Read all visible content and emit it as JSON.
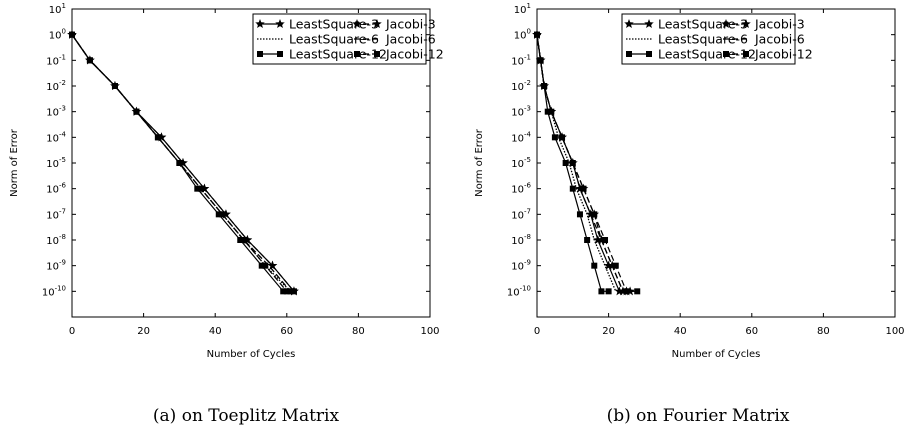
{
  "chart_data": [
    {
      "type": "line",
      "caption": "(a) on Toeplitz Matrix",
      "xlabel": "Number of Cycles",
      "ylabel": "Norm of Error",
      "xlim": [
        0,
        100
      ],
      "ylim_exp": [
        -11,
        1
      ],
      "yscale": "log",
      "xticks": [
        0,
        20,
        40,
        60,
        80,
        100
      ],
      "yticks_exp": [
        -10,
        -9,
        -8,
        -7,
        -6,
        -5,
        -4,
        -3,
        -2,
        -1,
        0,
        1
      ],
      "legend_position": "top-right",
      "series": [
        {
          "name": "LeastSquare-3",
          "marker": "star",
          "dash": "solid",
          "x": [
            0,
            5,
            12,
            18,
            25,
            31,
            37,
            43,
            49,
            56,
            62
          ],
          "y_exp": [
            0,
            -1,
            -2,
            -3,
            -4,
            -5,
            -6,
            -7,
            -8,
            -9,
            -10
          ]
        },
        {
          "name": "LeastSquare-6",
          "marker": "none",
          "dash": "dotted",
          "x": [
            0,
            5,
            12,
            18,
            24,
            30,
            36,
            42,
            48,
            54,
            61
          ],
          "y_exp": [
            0,
            -1,
            -2,
            -3,
            -4,
            -5,
            -6,
            -7,
            -8,
            -9,
            -10
          ]
        },
        {
          "name": "LeastSquare-12",
          "marker": "square",
          "dash": "solid",
          "x": [
            0,
            5,
            12,
            18,
            24,
            30,
            35,
            41,
            47,
            53,
            59,
            61
          ],
          "y_exp": [
            0,
            -1,
            -2,
            -3,
            -4,
            -5,
            -6,
            -7,
            -8,
            -9,
            -10,
            -10
          ]
        },
        {
          "name": "Jacobi-3",
          "marker": "star",
          "dash": "dashed",
          "x": [
            0,
            5,
            12,
            18,
            25,
            31,
            37,
            43,
            49,
            56,
            62
          ],
          "y_exp": [
            0,
            -1,
            -2,
            -3,
            -4,
            -5,
            -6,
            -7,
            -8,
            -9,
            -10
          ]
        },
        {
          "name": "Jacobi-6",
          "marker": "none",
          "dash": "dashed",
          "x": [
            0,
            5,
            12,
            18,
            24,
            30,
            36,
            42,
            48,
            55,
            61
          ],
          "y_exp": [
            0,
            -1,
            -2,
            -3,
            -4,
            -5,
            -6,
            -7,
            -8,
            -9,
            -10
          ]
        },
        {
          "name": "Jacobi-12",
          "marker": "square",
          "dash": "dashed",
          "x": [
            0,
            5,
            12,
            18,
            24,
            30,
            36,
            42,
            48,
            54,
            60,
            62
          ],
          "y_exp": [
            0,
            -1,
            -2,
            -3,
            -4,
            -5,
            -6,
            -7,
            -8,
            -9,
            -10,
            -10
          ]
        }
      ]
    },
    {
      "type": "line",
      "caption": "(b) on Fourier Matrix",
      "xlabel": "Number of Cycles",
      "ylabel": "Norm of Error",
      "xlim": [
        0,
        100
      ],
      "ylim_exp": [
        -11,
        1
      ],
      "yscale": "log",
      "xticks": [
        0,
        20,
        40,
        60,
        80,
        100
      ],
      "yticks_exp": [
        -10,
        -9,
        -8,
        -7,
        -6,
        -5,
        -4,
        -3,
        -2,
        -1,
        0,
        1
      ],
      "legend_position": "top-right",
      "series": [
        {
          "name": "LeastSquare-3",
          "marker": "star",
          "dash": "solid",
          "x": [
            0,
            1,
            2,
            4,
            7,
            10,
            12,
            15,
            17,
            20,
            23,
            25
          ],
          "y_exp": [
            0,
            -1,
            -2,
            -3,
            -4,
            -5,
            -6,
            -7,
            -8,
            -9,
            -10,
            -10
          ]
        },
        {
          "name": "LeastSquare-6",
          "marker": "none",
          "dash": "dotted",
          "x": [
            0,
            1,
            2,
            4,
            6,
            9,
            11,
            14,
            16,
            19,
            22
          ],
          "y_exp": [
            0,
            -1,
            -2,
            -3,
            -4,
            -5,
            -6,
            -7,
            -8,
            -9,
            -10
          ]
        },
        {
          "name": "LeastSquare-12",
          "marker": "square",
          "dash": "solid",
          "x": [
            0,
            1,
            2,
            3,
            5,
            8,
            10,
            12,
            14,
            16,
            18,
            20
          ],
          "y_exp": [
            0,
            -1,
            -2,
            -3,
            -4,
            -5,
            -6,
            -7,
            -8,
            -9,
            -10,
            -10
          ]
        },
        {
          "name": "Jacobi-3",
          "marker": "star",
          "dash": "dashed",
          "x": [
            0,
            1,
            2,
            4,
            7,
            10,
            13,
            16,
            18,
            21,
            24,
            26
          ],
          "y_exp": [
            0,
            -1,
            -2,
            -3,
            -4,
            -5,
            -6,
            -7,
            -8,
            -9,
            -10,
            -10
          ]
        },
        {
          "name": "Jacobi-6",
          "marker": "none",
          "dash": "dashed",
          "x": [
            0,
            1,
            2,
            4,
            7,
            10,
            12,
            15,
            18,
            21,
            24,
            27
          ],
          "y_exp": [
            0,
            -1,
            -2,
            -3,
            -4,
            -5,
            -6,
            -7,
            -8,
            -9,
            -10,
            -10
          ]
        },
        {
          "name": "Jacobi-12",
          "marker": "square",
          "dash": "dashed",
          "x": [
            0,
            1,
            2,
            4,
            7,
            10,
            13,
            16,
            19,
            22,
            25,
            28
          ],
          "y_exp": [
            0,
            -1,
            -2,
            -3,
            -4,
            -5,
            -6,
            -7,
            -8,
            -9,
            -10,
            -10
          ]
        }
      ]
    }
  ]
}
